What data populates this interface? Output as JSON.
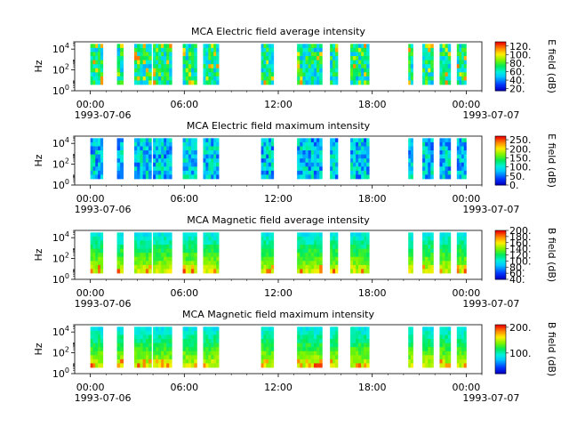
{
  "chart_data": [
    {
      "type": "heatmap",
      "title": "MCA  Electric field average intensity",
      "ylabel": "Hz",
      "y_ticks": [
        "10^4",
        "10^2",
        "10^0"
      ],
      "x_ticks": [
        "00:00",
        "06:00",
        "12:00",
        "18:00",
        "00:00"
      ],
      "x_dates": [
        "1993-07-06",
        "1993-07-07"
      ],
      "colorbar": {
        "label": "E field (dB)",
        "min": 15,
        "max": 130,
        "ticks": [
          "120.",
          "100.",
          "80.",
          "60.",
          "40.",
          "20."
        ]
      },
      "cmap_level": 0.42
    },
    {
      "type": "heatmap",
      "title": "MCA  Electric field maximum intensity",
      "ylabel": "Hz",
      "y_ticks": [
        "10^4",
        "10^2",
        "10^0"
      ],
      "x_ticks": [
        "00:00",
        "06:00",
        "12:00",
        "18:00",
        "00:00"
      ],
      "x_dates": [
        "1993-07-06",
        "1993-07-07"
      ],
      "colorbar": {
        "label": "E field (dB)",
        "min": 0,
        "max": 270,
        "ticks": [
          "250.",
          "200.",
          "150.",
          "100.",
          "50.",
          "0."
        ]
      },
      "cmap_level": 0.3
    },
    {
      "type": "heatmap",
      "title": "MCA  Magnetic field average intensity",
      "ylabel": "Hz",
      "y_ticks": [
        "10^4",
        "10^2",
        "10^0"
      ],
      "x_ticks": [
        "00:00",
        "06:00",
        "12:00",
        "18:00",
        "00:00"
      ],
      "x_dates": [
        "1993-07-06",
        "1993-07-07"
      ],
      "colorbar": {
        "label": "B field (dB)",
        "min": 40,
        "max": 200,
        "ticks": [
          "200.",
          "180.",
          "160.",
          "140.",
          "120.",
          "100.",
          "80.",
          "60.",
          "40."
        ]
      },
      "cmap_level": 0.5
    },
    {
      "type": "heatmap",
      "title": "MCA  Magnetic field maximum intensity",
      "ylabel": "Hz",
      "y_ticks": [
        "10^4",
        "10^2",
        "10^0"
      ],
      "x_ticks": [
        "00:00",
        "06:00",
        "12:00",
        "18:00",
        "00:00"
      ],
      "x_dates": [
        "1993-07-06",
        "1993-07-07"
      ],
      "colorbar": {
        "label": "B field (dB)",
        "min": 20,
        "max": 210,
        "ticks": [
          "200.",
          "100."
        ]
      },
      "cmap_level": 0.5
    }
  ],
  "observation_intervals_hours": [
    [
      0.0,
      0.8
    ],
    [
      1.7,
      2.1
    ],
    [
      2.8,
      3.9
    ],
    [
      4.0,
      5.2
    ],
    [
      5.9,
      6.8
    ],
    [
      7.2,
      8.2
    ],
    [
      10.9,
      11.7
    ],
    [
      13.2,
      14.8
    ],
    [
      15.3,
      15.8
    ],
    [
      16.6,
      17.8
    ],
    [
      20.3,
      20.6
    ],
    [
      21.2,
      21.9
    ],
    [
      22.3,
      23.0
    ],
    [
      23.4,
      24.0
    ]
  ],
  "time_range_hours": [
    -1.0,
    25.0
  ],
  "freq_range_log10": [
    0,
    4.7
  ],
  "band_log10": [
    0.6,
    4.5
  ]
}
